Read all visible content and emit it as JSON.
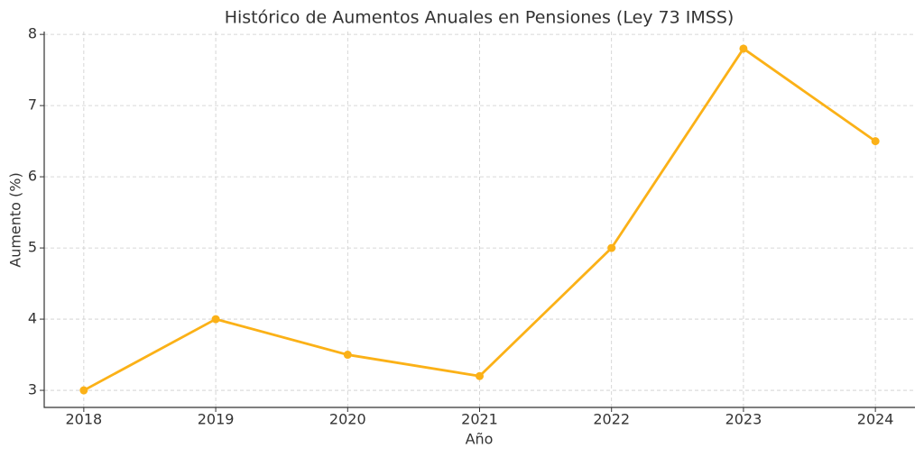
{
  "chart_data": {
    "type": "line",
    "title": "Histórico de Aumentos Anuales en Pensiones (Ley 73 IMSS)",
    "x_label": "Año",
    "y_label": "Aumento (%)",
    "x": [
      2018,
      2019,
      2020,
      2021,
      2022,
      2023,
      2024
    ],
    "series": [
      {
        "color": "#fbb117",
        "values": [
          3,
          4,
          3.5,
          3.2,
          5,
          7.8,
          6.5
        ]
      }
    ],
    "xlim": [
      2017.7,
      2024.3
    ],
    "xticks": [
      2018,
      2019,
      2020,
      2021,
      2022,
      2023,
      2024
    ],
    "ylim": [
      2.76,
      8.04
    ],
    "yticks": [
      3,
      4,
      5,
      6,
      7,
      8
    ],
    "grid": true
  }
}
